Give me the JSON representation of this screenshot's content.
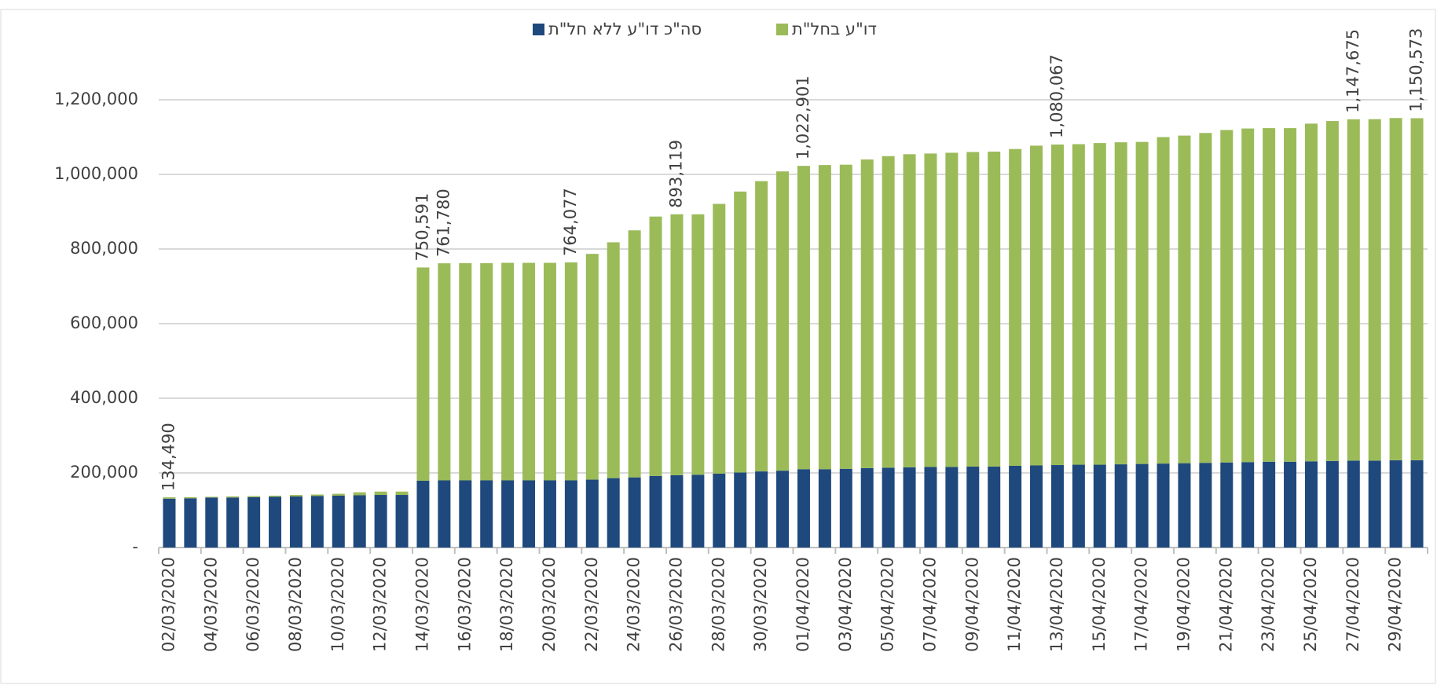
{
  "chart_data": {
    "type": "stacked_bar",
    "categories": [
      "02/03/2020",
      null,
      "04/03/2020",
      null,
      "06/03/2020",
      null,
      "08/03/2020",
      null,
      "10/03/2020",
      null,
      "12/03/2020",
      null,
      "14/03/2020",
      null,
      "16/03/2020",
      null,
      "18/03/2020",
      null,
      "20/03/2020",
      null,
      "22/03/2020",
      null,
      "24/03/2020",
      null,
      "26/03/2020",
      null,
      "28/03/2020",
      null,
      "30/03/2020",
      null,
      "01/04/2020",
      null,
      "03/04/2020",
      null,
      "05/04/2020",
      null,
      "07/04/2020",
      null,
      "09/04/2020",
      null,
      "11/04/2020",
      null,
      "13/04/2020",
      null,
      "15/04/2020",
      null,
      "17/04/2020",
      null,
      "19/04/2020",
      null,
      "21/04/2020",
      null,
      "23/04/2020",
      null,
      "25/04/2020",
      null,
      "27/04/2020",
      null,
      "29/04/2020",
      null
    ],
    "series": [
      {
        "name": "סה\"כ דו\"ע ללא חל\"ת",
        "color": "#1f497d",
        "values": [
          131000,
          132000,
          134000,
          134000,
          135000,
          136000,
          137000,
          138000,
          139000,
          140000,
          141000,
          141000,
          179000,
          180000,
          180000,
          180000,
          180000,
          180000,
          180000,
          180000,
          182000,
          186000,
          188000,
          192000,
          194000,
          195000,
          198000,
          201000,
          204000,
          206000,
          210000,
          210000,
          211000,
          213000,
          214000,
          215000,
          216000,
          216000,
          217000,
          217000,
          219000,
          220000,
          221000,
          222000,
          222000,
          223000,
          224000,
          225000,
          226000,
          227000,
          228000,
          229000,
          230000,
          230000,
          231000,
          232000,
          233000,
          233000,
          234000,
          234000
        ]
      },
      {
        "name": "דו\"ע בחל\"ת",
        "color": "#9bbb59",
        "values": [
          3490,
          3000,
          2000,
          3000,
          3000,
          3000,
          4000,
          4000,
          5000,
          8000,
          9000,
          9000,
          571591,
          581780,
          582000,
          582000,
          583000,
          583000,
          583000,
          584077,
          605000,
          632000,
          662000,
          695000,
          699119,
          698000,
          723000,
          753000,
          778000,
          802000,
          812901,
          815000,
          815000,
          827000,
          835000,
          839000,
          840000,
          842000,
          843000,
          844000,
          849000,
          857000,
          859067,
          859000,
          862000,
          863000,
          863000,
          875000,
          878000,
          884000,
          891000,
          894000,
          894000,
          894000,
          905000,
          911000,
          914675,
          915000,
          917000,
          916573
        ]
      }
    ],
    "totals": [
      134490,
      null,
      null,
      null,
      null,
      null,
      null,
      null,
      null,
      null,
      null,
      null,
      750591,
      761780,
      null,
      null,
      null,
      null,
      null,
      764077,
      null,
      null,
      null,
      null,
      893119,
      null,
      null,
      null,
      null,
      null,
      1022901,
      null,
      null,
      null,
      null,
      null,
      null,
      null,
      null,
      null,
      null,
      null,
      1080067,
      null,
      null,
      null,
      null,
      null,
      null,
      null,
      null,
      null,
      null,
      null,
      null,
      null,
      1147675,
      null,
      null,
      1150573
    ],
    "value_labels": [
      "134,490",
      null,
      null,
      null,
      null,
      null,
      null,
      null,
      null,
      null,
      null,
      null,
      "750,591",
      "761,780",
      null,
      null,
      null,
      null,
      null,
      "764,077",
      null,
      null,
      null,
      null,
      "893,119",
      null,
      null,
      null,
      null,
      null,
      "1,022,901",
      null,
      null,
      null,
      null,
      null,
      null,
      null,
      null,
      null,
      null,
      null,
      "1,080,067",
      null,
      null,
      null,
      null,
      null,
      null,
      null,
      null,
      null,
      null,
      null,
      null,
      null,
      "1,147,675",
      null,
      null,
      "1,150,573"
    ],
    "ylim": [
      0,
      1400000
    ],
    "yticks": [
      {
        "value": 0,
        "label": "-"
      },
      {
        "value": 200000,
        "label": "200,000"
      },
      {
        "value": 400000,
        "label": "400,000"
      },
      {
        "value": 600000,
        "label": "600,000"
      },
      {
        "value": 800000,
        "label": "800,000"
      },
      {
        "value": 1000000,
        "label": "1,000,000"
      },
      {
        "value": 1200000,
        "label": "1,200,000"
      }
    ],
    "grid": true,
    "legend": "top"
  }
}
